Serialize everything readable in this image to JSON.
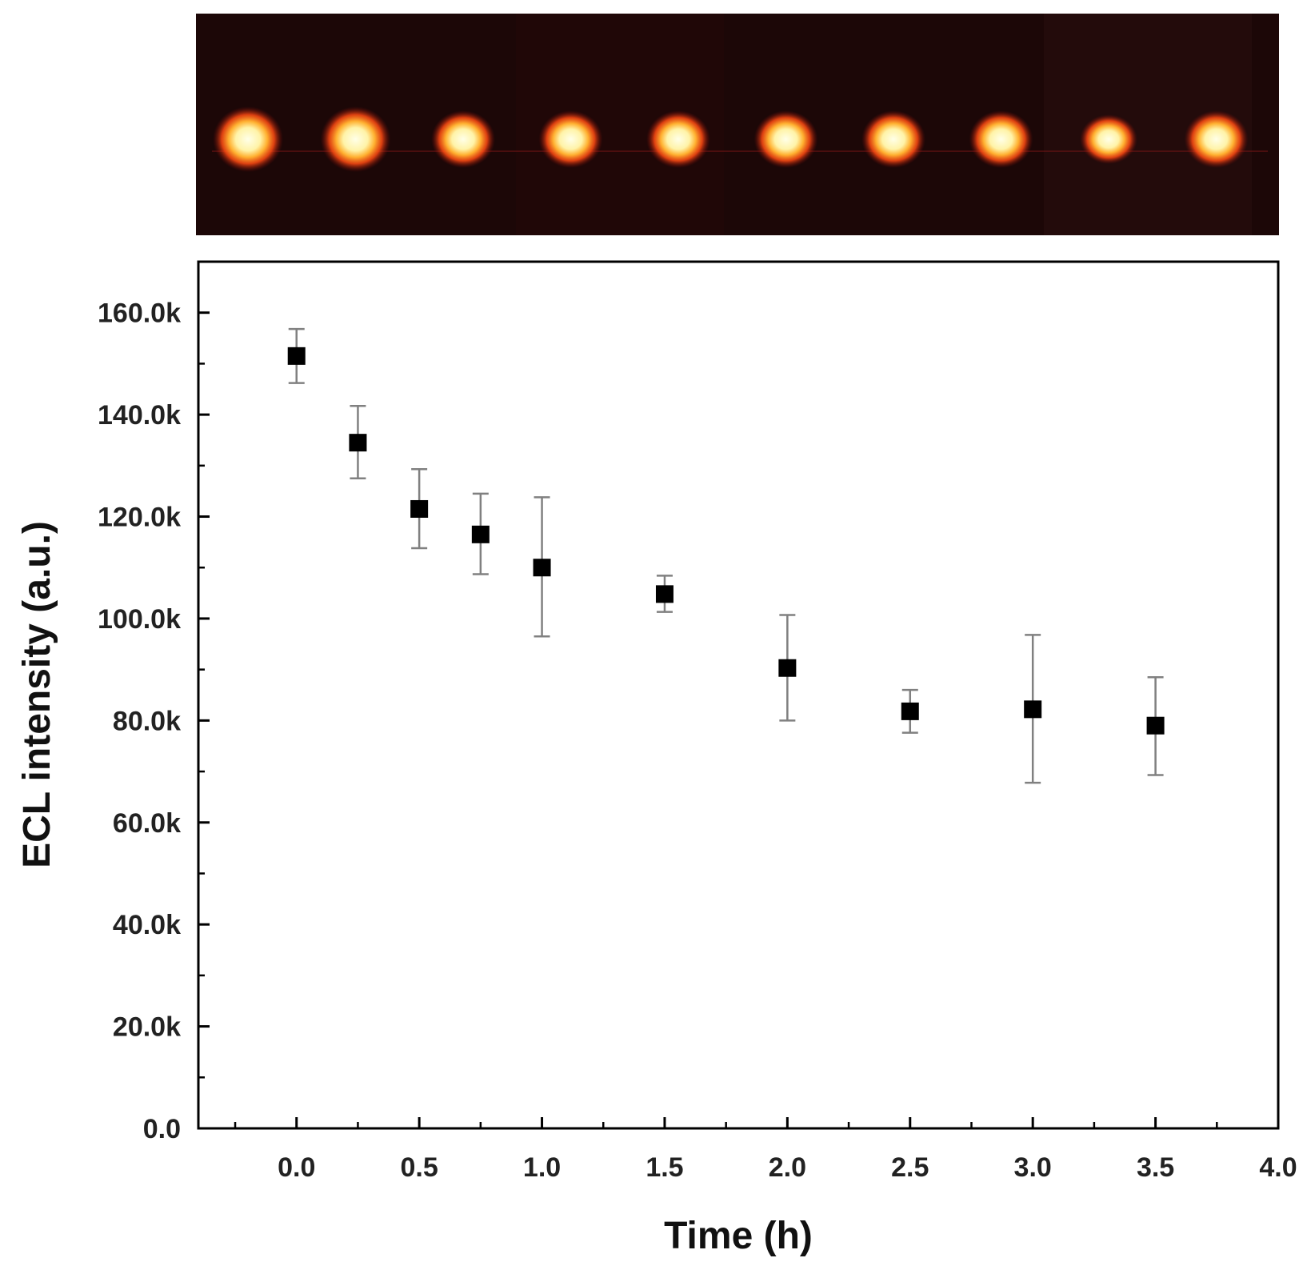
{
  "chart_data": {
    "type": "scatter",
    "title": "",
    "xlabel": "Time (h)",
    "ylabel": "ECL intensity (a.u.)",
    "xlim": [
      -0.4,
      4.0
    ],
    "ylim": [
      0,
      170000
    ],
    "x_ticks": [
      0.0,
      0.5,
      1.0,
      1.5,
      2.0,
      2.5,
      3.0,
      3.5,
      4.0
    ],
    "x_tick_labels": [
      "0.0",
      "0.5",
      "1.0",
      "1.5",
      "2.0",
      "2.5",
      "3.0",
      "3.5",
      "4.0"
    ],
    "y_ticks": [
      0,
      20000,
      40000,
      60000,
      80000,
      100000,
      120000,
      140000,
      160000
    ],
    "y_tick_labels": [
      "0.0",
      "20.0k",
      "40.0k",
      "60.0k",
      "80.0k",
      "100.0k",
      "120.0k",
      "140.0k",
      "160.0k"
    ],
    "grid": false,
    "legend": "none",
    "marker": "square",
    "marker_color": "#000000",
    "errorbar_color": "#808080",
    "series": [
      {
        "x": [
          0.0,
          0.25,
          0.5,
          0.75,
          1.0,
          1.5,
          2.0,
          2.5,
          3.0,
          3.5
        ],
        "y": [
          151500,
          134500,
          121500,
          116500,
          110000,
          104800,
          90300,
          81800,
          82200,
          79000
        ],
        "err_low": [
          5300,
          7000,
          7700,
          7800,
          13500,
          3500,
          10300,
          4200,
          14400,
          9700
        ],
        "err_high": [
          5300,
          7200,
          7800,
          8000,
          13800,
          3600,
          10400,
          4200,
          14600,
          9500
        ]
      }
    ]
  },
  "ecl_image": {
    "description_colors": {
      "background": "#1a0606",
      "glow": "#ff5a1a",
      "core": "#fffbe0"
    },
    "spot_count": 10
  }
}
